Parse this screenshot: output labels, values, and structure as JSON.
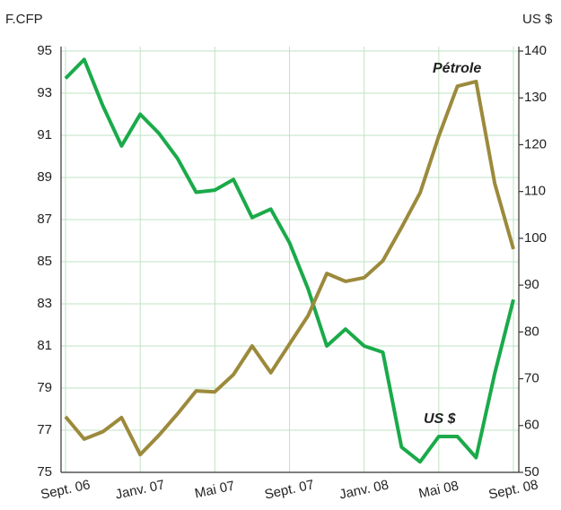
{
  "chart_data": {
    "type": "line",
    "y_label": "F.CFP",
    "y2_label": "US $",
    "categories": [
      "Sept. 06",
      null,
      null,
      null,
      "Janv. 07",
      null,
      null,
      null,
      "Mai 07",
      null,
      null,
      null,
      "Sept. 07",
      null,
      null,
      null,
      "Janv. 08",
      null,
      null,
      null,
      "Mai 08",
      null,
      null,
      null,
      "Sept. 08"
    ],
    "series": [
      {
        "name": "US $",
        "color": "#1aaa4a",
        "values": [
          93.7,
          94.6,
          92.4,
          90.5,
          92.0,
          91.1,
          89.9,
          88.3,
          88.4,
          88.9,
          87.1,
          87.5,
          85.9,
          83.7,
          81.0,
          81.8,
          81.0,
          80.7,
          76.2,
          75.5,
          76.7,
          76.7,
          75.7,
          79.7,
          83.2
        ]
      },
      {
        "name": "Pétrole",
        "color": "#9c8a3c",
        "axis": "y2",
        "values": [
          61.9,
          57.1,
          58.7,
          61.7,
          53.8,
          57.9,
          62.5,
          67.4,
          67.2,
          70.9,
          77.0,
          71.3,
          77.4,
          83.5,
          92.5,
          90.8,
          91.6,
          95.2,
          102.3,
          109.7,
          121.8,
          132.5,
          133.5,
          111.7,
          97.7
        ]
      }
    ],
    "ylim": [
      75,
      95
    ],
    "yticks": [
      75,
      77,
      79,
      81,
      83,
      85,
      87,
      89,
      91,
      93,
      95
    ],
    "y2lim": [
      50,
      140
    ],
    "y2ticks": [
      50,
      60,
      70,
      80,
      90,
      100,
      110,
      120,
      130,
      140
    ],
    "grid": true
  }
}
